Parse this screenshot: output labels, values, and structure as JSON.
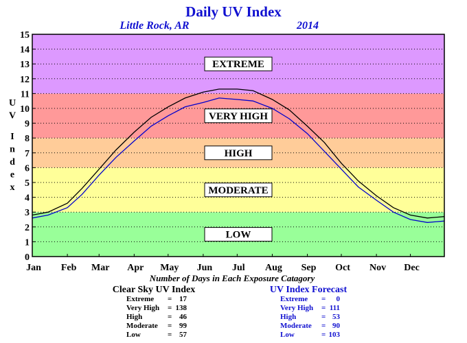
{
  "chart_data": {
    "type": "line",
    "title": "Daily UV Index",
    "location": "Little Rock, AR",
    "year": "2014",
    "ylabel": "UV Index",
    "ylim": [
      0,
      15
    ],
    "yticks": [
      0,
      1,
      2,
      3,
      4,
      5,
      6,
      7,
      8,
      9,
      10,
      11,
      12,
      13,
      14,
      15
    ],
    "xlim": [
      1,
      365
    ],
    "months": [
      "Jan",
      "Feb",
      "Mar",
      "Apr",
      "May",
      "Jun",
      "Jul",
      "Aug",
      "Sep",
      "Oct",
      "Nov",
      "Dec"
    ],
    "month_start_days": [
      1,
      32,
      60,
      91,
      121,
      152,
      182,
      213,
      244,
      274,
      305,
      335
    ],
    "grid": "horizontal dotted",
    "bands": [
      {
        "label": "LOW",
        "from": 0,
        "to": 3,
        "color": "#99ff99"
      },
      {
        "label": "MODERATE",
        "from": 3,
        "to": 6,
        "color": "#ffff99"
      },
      {
        "label": "HIGH",
        "from": 6,
        "to": 8,
        "color": "#ffcc99"
      },
      {
        "label": "VERY HIGH",
        "from": 8,
        "to": 11,
        "color": "#ff9999"
      },
      {
        "label": "EXTREME",
        "from": 11,
        "to": 15,
        "color": "#dd99ff"
      }
    ],
    "series": [
      {
        "kind": "clear-sky",
        "color": "#000000",
        "x": [
          1,
          15,
          32,
          45,
          60,
          75,
          91,
          106,
          121,
          136,
          152,
          166,
          182,
          196,
          213,
          228,
          244,
          259,
          274,
          289,
          305,
          320,
          335,
          350,
          365
        ],
        "values": [
          2.8,
          3.0,
          3.6,
          4.6,
          5.9,
          7.2,
          8.4,
          9.4,
          10.1,
          10.7,
          11.1,
          11.3,
          11.3,
          11.2,
          10.6,
          9.9,
          8.8,
          7.7,
          6.3,
          5.1,
          4.1,
          3.3,
          2.8,
          2.6,
          2.7
        ]
      },
      {
        "kind": "forecast",
        "color": "#0000cc",
        "x": [
          1,
          15,
          32,
          45,
          60,
          75,
          91,
          106,
          121,
          136,
          152,
          166,
          182,
          196,
          213,
          228,
          244,
          259,
          274,
          289,
          305,
          320,
          335,
          350,
          365
        ],
        "values": [
          2.6,
          2.8,
          3.3,
          4.2,
          5.5,
          6.7,
          7.8,
          8.8,
          9.5,
          10.1,
          10.4,
          10.7,
          10.6,
          10.5,
          10.0,
          9.3,
          8.3,
          7.1,
          5.9,
          4.7,
          3.8,
          3.0,
          2.5,
          2.3,
          2.4
        ]
      }
    ],
    "xnote": "Number of Days in Each Exposure Catagory",
    "summary": {
      "clear_sky": {
        "title": "Clear Sky UV Index",
        "color": "#000000",
        "rows": [
          {
            "label": "Extreme",
            "value": "17"
          },
          {
            "label": "Very High",
            "value": "138"
          },
          {
            "label": "High",
            "value": "46"
          },
          {
            "label": "Moderate",
            "value": "99"
          },
          {
            "label": "Low",
            "value": "57"
          }
        ]
      },
      "forecast": {
        "title": "UV Index Forecast",
        "color": "#1010d0",
        "rows": [
          {
            "label": "Extreme",
            "value": "0"
          },
          {
            "label": "Very High",
            "value": "111"
          },
          {
            "label": "High",
            "value": "53"
          },
          {
            "label": "Moderate",
            "value": "90"
          },
          {
            "label": "Low",
            "value": "103"
          }
        ]
      }
    }
  }
}
